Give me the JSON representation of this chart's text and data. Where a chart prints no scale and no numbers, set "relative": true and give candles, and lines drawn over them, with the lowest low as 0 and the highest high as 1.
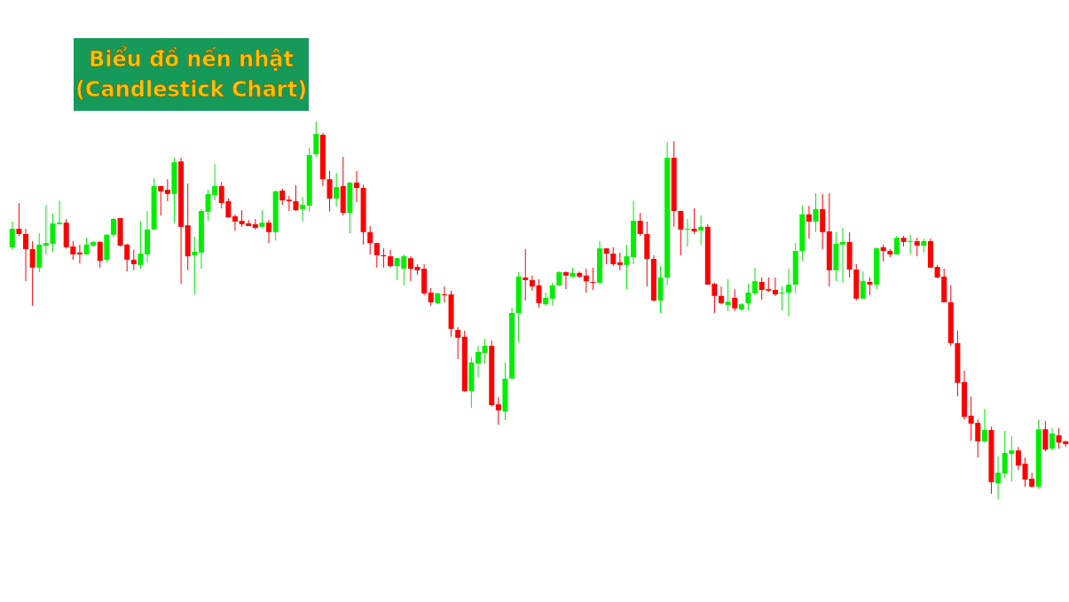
{
  "chart_data": {
    "type": "candlestick",
    "title": "Biểu đồ nến nhật\n(Candlestick Chart)",
    "relative": true,
    "categories": [
      null,
      null,
      null,
      null,
      null,
      null,
      null,
      null,
      null,
      null,
      null,
      null,
      null,
      null,
      null,
      null,
      null,
      null,
      null,
      null,
      null,
      null,
      null,
      null,
      null,
      null,
      null,
      null,
      null,
      null,
      null,
      null,
      null,
      null,
      null,
      null,
      null,
      null,
      null,
      null,
      null,
      null,
      null,
      null,
      null,
      null,
      null,
      null,
      null,
      null,
      null,
      null,
      null,
      null,
      null,
      null,
      null,
      null,
      null,
      null,
      null,
      null,
      null,
      null,
      null,
      null,
      null,
      null,
      null,
      null,
      null,
      null,
      null,
      null,
      null,
      null,
      null,
      null,
      null,
      null,
      null,
      null,
      null,
      null,
      null,
      null,
      null,
      null,
      null,
      null,
      null,
      null,
      null,
      null,
      null,
      null,
      null,
      null,
      null,
      null,
      null,
      null,
      null,
      null,
      null,
      null,
      null,
      null,
      null,
      null,
      null,
      null,
      null,
      null,
      null,
      null,
      null,
      null,
      null,
      null,
      null,
      null,
      null,
      null,
      null,
      null,
      null,
      null,
      null,
      null,
      null,
      null,
      null,
      null,
      null,
      null,
      null,
      null,
      null,
      null,
      null,
      null,
      null,
      null,
      null,
      null,
      null,
      null,
      null,
      null,
      null,
      null,
      null,
      null,
      null,
      null,
      null
    ],
    "ohlc": [
      [
        0.667,
        0.735,
        0.66,
        0.716
      ],
      [
        0.716,
        0.784,
        0.697,
        0.702
      ],
      [
        0.702,
        0.716,
        0.577,
        0.662
      ],
      [
        0.662,
        0.683,
        0.512,
        0.613
      ],
      [
        0.613,
        0.704,
        0.601,
        0.674
      ],
      [
        0.671,
        0.779,
        0.648,
        0.678
      ],
      [
        0.676,
        0.756,
        0.655,
        0.73
      ],
      [
        0.728,
        0.791,
        0.728,
        0.732
      ],
      [
        0.732,
        0.742,
        0.664,
        0.667
      ],
      [
        0.669,
        0.683,
        0.634,
        0.648
      ],
      [
        0.653,
        0.674,
        0.624,
        0.648
      ],
      [
        0.648,
        0.692,
        0.648,
        0.674
      ],
      [
        0.671,
        0.683,
        0.667,
        0.681
      ],
      [
        0.681,
        0.683,
        0.613,
        0.631
      ],
      [
        0.634,
        0.702,
        0.627,
        0.7
      ],
      [
        0.7,
        0.744,
        0.695,
        0.742
      ],
      [
        0.744,
        0.744,
        0.669,
        0.671
      ],
      [
        0.674,
        0.676,
        0.603,
        0.634
      ],
      [
        0.634,
        0.66,
        0.606,
        0.622
      ],
      [
        0.62,
        0.735,
        0.61,
        0.65
      ],
      [
        0.648,
        0.763,
        0.627,
        0.714
      ],
      [
        0.714,
        0.85,
        0.714,
        0.829
      ],
      [
        0.829,
        0.829,
        0.751,
        0.815
      ],
      [
        0.819,
        0.847,
        0.789,
        0.808
      ],
      [
        0.808,
        0.904,
        0.732,
        0.892
      ],
      [
        0.894,
        0.904,
        0.57,
        0.721
      ],
      [
        0.725,
        0.836,
        0.606,
        0.643
      ],
      [
        0.646,
        0.695,
        0.542,
        0.655
      ],
      [
        0.653,
        0.768,
        0.61,
        0.763
      ],
      [
        0.761,
        0.819,
        0.737,
        0.808
      ],
      [
        0.805,
        0.887,
        0.791,
        0.829
      ],
      [
        0.829,
        0.84,
        0.77,
        0.784
      ],
      [
        0.789,
        0.796,
        0.746,
        0.746
      ],
      [
        0.749,
        0.754,
        0.711,
        0.735
      ],
      [
        0.737,
        0.765,
        0.721,
        0.728
      ],
      [
        0.73,
        0.739,
        0.723,
        0.723
      ],
      [
        0.728,
        0.742,
        0.714,
        0.718
      ],
      [
        0.721,
        0.765,
        0.718,
        0.732
      ],
      [
        0.732,
        0.739,
        0.678,
        0.707
      ],
      [
        0.707,
        0.817,
        0.685,
        0.815
      ],
      [
        0.817,
        0.822,
        0.779,
        0.791
      ],
      [
        0.793,
        0.803,
        0.763,
        0.789
      ],
      [
        0.789,
        0.831,
        0.763,
        0.765
      ],
      [
        0.768,
        0.8,
        0.735,
        0.779
      ],
      [
        0.777,
        0.93,
        0.761,
        0.911
      ],
      [
        0.913,
        1,
        0.906,
        0.967
      ],
      [
        0.965,
        0.969,
        0.829,
        0.847
      ],
      [
        0.847,
        0.869,
        0.761,
        0.796
      ],
      [
        0.796,
        0.864,
        0.775,
        0.826
      ],
      [
        0.829,
        0.906,
        0.751,
        0.758
      ],
      [
        0.758,
        0.84,
        0.704,
        0.838
      ],
      [
        0.838,
        0.869,
        0.786,
        0.824
      ],
      [
        0.824,
        0.833,
        0.674,
        0.707
      ],
      [
        0.707,
        0.723,
        0.648,
        0.678
      ],
      [
        0.678,
        0.678,
        0.613,
        0.646
      ],
      [
        0.646,
        0.664,
        0.613,
        0.643
      ],
      [
        0.643,
        0.66,
        0.613,
        0.617
      ],
      [
        0.617,
        0.638,
        0.58,
        0.638
      ],
      [
        0.61,
        0.648,
        0.566,
        0.643
      ],
      [
        0.638,
        0.643,
        0.577,
        0.61
      ],
      [
        0.615,
        0.622,
        0.594,
        0.606
      ],
      [
        0.61,
        0.622,
        0.54,
        0.545
      ],
      [
        0.547,
        0.559,
        0.512,
        0.521
      ],
      [
        0.519,
        0.547,
        0.516,
        0.545
      ],
      [
        0.542,
        0.563,
        0.521,
        0.54
      ],
      [
        0.542,
        0.552,
        0.43,
        0.451
      ],
      [
        0.448,
        0.455,
        0.371,
        0.427
      ],
      [
        0.43,
        0.446,
        0.284,
        0.286
      ],
      [
        0.286,
        0.376,
        0.242,
        0.362
      ],
      [
        0.359,
        0.406,
        0.322,
        0.39
      ],
      [
        0.387,
        0.425,
        0.359,
        0.406
      ],
      [
        0.406,
        0.42,
        0.246,
        0.249
      ],
      [
        0.251,
        0.27,
        0.197,
        0.235
      ],
      [
        0.232,
        0.362,
        0.209,
        0.319
      ],
      [
        0.319,
        0.507,
        0.319,
        0.493
      ],
      [
        0.493,
        0.601,
        0.415,
        0.589
      ],
      [
        0.587,
        0.662,
        0.526,
        0.58
      ],
      [
        0.58,
        0.592,
        0.552,
        0.563
      ],
      [
        0.566,
        0.582,
        0.507,
        0.519
      ],
      [
        0.516,
        0.547,
        0.512,
        0.533
      ],
      [
        0.531,
        0.573,
        0.514,
        0.566
      ],
      [
        0.566,
        0.603,
        0.563,
        0.601
      ],
      [
        0.601,
        0.603,
        0.556,
        0.592
      ],
      [
        0.589,
        0.613,
        0.587,
        0.599
      ],
      [
        0.599,
        0.603,
        0.585,
        0.589
      ],
      [
        0.592,
        0.61,
        0.547,
        0.577
      ],
      [
        0.575,
        0.613,
        0.554,
        0.573
      ],
      [
        0.573,
        0.683,
        0.57,
        0.664
      ],
      [
        0.664,
        0.664,
        0.622,
        0.65
      ],
      [
        0.65,
        0.667,
        0.617,
        0.622
      ],
      [
        0.627,
        0.653,
        0.606,
        0.62
      ],
      [
        0.62,
        0.674,
        0.556,
        0.643
      ],
      [
        0.641,
        0.791,
        0.622,
        0.737
      ],
      [
        0.737,
        0.758,
        0.697,
        0.702
      ],
      [
        0.702,
        0.735,
        0.563,
        0.636
      ],
      [
        0.636,
        0.646,
        0.523,
        0.526
      ],
      [
        0.526,
        0.617,
        0.493,
        0.587
      ],
      [
        0.587,
        0.946,
        0.566,
        0.904
      ],
      [
        0.904,
        0.948,
        0.721,
        0.763
      ],
      [
        0.763,
        0.763,
        0.646,
        0.714
      ],
      [
        0.714,
        0.742,
        0.669,
        0.716
      ],
      [
        0.716,
        0.77,
        0.702,
        0.709
      ],
      [
        0.711,
        0.751,
        0.674,
        0.721
      ],
      [
        0.721,
        0.728,
        0.568,
        0.568
      ],
      [
        0.57,
        0.573,
        0.493,
        0.538
      ],
      [
        0.538,
        0.563,
        0.516,
        0.519
      ],
      [
        0.514,
        0.582,
        0.498,
        0.523
      ],
      [
        0.533,
        0.556,
        0.498,
        0.505
      ],
      [
        0.502,
        0.519,
        0.498,
        0.516
      ],
      [
        0.519,
        0.57,
        0.5,
        0.547
      ],
      [
        0.545,
        0.613,
        0.54,
        0.577
      ],
      [
        0.575,
        0.587,
        0.528,
        0.554
      ],
      [
        0.556,
        0.587,
        0.549,
        0.552
      ],
      [
        0.554,
        0.587,
        0.538,
        0.542
      ],
      [
        0.545,
        0.563,
        0.5,
        0.547
      ],
      [
        0.547,
        0.61,
        0.484,
        0.568
      ],
      [
        0.568,
        0.678,
        0.545,
        0.657
      ],
      [
        0.657,
        0.777,
        0.631,
        0.754
      ],
      [
        0.754,
        0.777,
        0.69,
        0.735
      ],
      [
        0.735,
        0.81,
        0.707,
        0.768
      ],
      [
        0.768,
        0.808,
        0.662,
        0.707
      ],
      [
        0.709,
        0.81,
        0.563,
        0.606
      ],
      [
        0.606,
        0.707,
        0.577,
        0.676
      ],
      [
        0.674,
        0.718,
        0.573,
        0.681
      ],
      [
        0.681,
        0.707,
        0.587,
        0.608
      ],
      [
        0.608,
        0.622,
        0.526,
        0.531
      ],
      [
        0.531,
        0.603,
        0.531,
        0.577
      ],
      [
        0.575,
        0.587,
        0.54,
        0.568
      ],
      [
        0.568,
        0.667,
        0.556,
        0.664
      ],
      [
        0.667,
        0.674,
        0.629,
        0.657
      ],
      [
        0.657,
        0.662,
        0.641,
        0.648
      ],
      [
        0.648,
        0.697,
        0.648,
        0.692
      ],
      [
        0.692,
        0.697,
        0.669,
        0.681
      ],
      [
        0.681,
        0.7,
        0.648,
        0.683
      ],
      [
        0.683,
        0.692,
        0.643,
        0.671
      ],
      [
        0.671,
        0.69,
        0.653,
        0.683
      ],
      [
        0.683,
        0.69,
        0.613,
        0.613
      ],
      [
        0.615,
        0.62,
        0.585,
        0.587
      ],
      [
        0.589,
        0.61,
        0.521,
        0.521
      ],
      [
        0.521,
        0.566,
        0.406,
        0.413
      ],
      [
        0.413,
        0.446,
        0.272,
        0.308
      ],
      [
        0.31,
        0.34,
        0.211,
        0.218
      ],
      [
        0.221,
        0.272,
        0.155,
        0.2
      ],
      [
        0.202,
        0.211,
        0.11,
        0.153
      ],
      [
        0.153,
        0.239,
        0.15,
        0.183
      ],
      [
        0.183,
        0.192,
        0.014,
        0.045
      ],
      [
        0.042,
        0.113,
        0,
        0.07
      ],
      [
        0.068,
        0.181,
        0.056,
        0.122
      ],
      [
        0.12,
        0.167,
        0.047,
        0.129
      ],
      [
        0.129,
        0.138,
        0.077,
        0.089
      ],
      [
        0.094,
        0.11,
        0.033,
        0.052
      ],
      [
        0.054,
        0.07,
        0.031,
        0.033
      ],
      [
        0.033,
        0.211,
        0.028,
        0.185
      ],
      [
        0.185,
        0.207,
        0.127,
        0.131
      ],
      [
        0.134,
        0.188,
        0.129,
        0.174
      ],
      [
        0.169,
        0.188,
        0.134,
        0.15
      ],
      [
        0.153,
        0.155,
        0.139,
        0.146
      ]
    ],
    "colors": [
      "#00ee00",
      "#ff0000",
      "#ff0000",
      "#ff0000",
      "#00ee00",
      "#00ee00",
      "#00ee00",
      "#00ee00",
      "#ff0000",
      "#ff0000",
      "#ff0000",
      "#00ee00",
      "#00ee00",
      "#ff0000",
      "#00ee00",
      "#00ee00",
      "#ff0000",
      "#ff0000",
      "#ff0000",
      "#00ee00",
      "#00ee00",
      "#00ee00",
      "#ff0000",
      "#ff0000",
      "#00ee00",
      "#ff0000",
      "#ff0000",
      "#00ee00",
      "#00ee00",
      "#00ee00",
      "#00ee00",
      "#ff0000",
      "#ff0000",
      "#ff0000",
      "#ff0000",
      "#ff0000",
      "#ff0000",
      "#00ee00",
      "#ff0000",
      "#00ee00",
      "#ff0000",
      "#ff0000",
      "#ff0000",
      "#00ee00",
      "#00ee00",
      "#00ee00",
      "#ff0000",
      "#ff0000",
      "#00ee00",
      "#ff0000",
      "#00ee00",
      "#ff0000",
      "#ff0000",
      "#ff0000",
      "#ff0000",
      "#ff0000",
      "#ff0000",
      "#00ee00",
      "#00ee00",
      "#ff0000",
      "#ff0000",
      "#ff0000",
      "#ff0000",
      "#00ee00",
      "#ff0000",
      "#ff0000",
      "#ff0000",
      "#ff0000",
      "#00ee00",
      "#00ee00",
      "#00ee00",
      "#ff0000",
      "#ff0000",
      "#00ee00",
      "#00ee00",
      "#00ee00",
      "#ff0000",
      "#ff0000",
      "#ff0000",
      "#00ee00",
      "#00ee00",
      "#00ee00",
      "#ff0000",
      "#00ee00",
      "#ff0000",
      "#ff0000",
      "#ff0000",
      "#00ee00",
      "#ff0000",
      "#ff0000",
      "#ff0000",
      "#00ee00",
      "#00ee00",
      "#ff0000",
      "#ff0000",
      "#ff0000",
      "#00ee00",
      "#00ee00",
      "#ff0000",
      "#ff0000",
      "#00ee00",
      "#ff0000",
      "#00ee00",
      "#ff0000",
      "#ff0000",
      "#ff0000",
      "#00ee00",
      "#ff0000",
      "#00ee00",
      "#00ee00",
      "#00ee00",
      "#ff0000",
      "#ff0000",
      "#ff0000",
      "#00ee00",
      "#00ee00",
      "#00ee00",
      "#00ee00",
      "#ff0000",
      "#00ee00",
      "#ff0000",
      "#ff0000",
      "#00ee00",
      "#00ee00",
      "#ff0000",
      "#ff0000",
      "#00ee00",
      "#ff0000",
      "#00ee00",
      "#ff0000",
      "#ff0000",
      "#00ee00",
      "#ff0000",
      "#00ee00",
      "#ff0000",
      "#00ee00",
      "#ff0000",
      "#ff0000",
      "#ff0000",
      "#ff0000",
      "#ff0000",
      "#ff0000",
      "#ff0000",
      "#ff0000",
      "#00ee00",
      "#ff0000",
      "#00ee00",
      "#00ee00",
      "#00ee00",
      "#ff0000",
      "#ff0000",
      "#ff0000",
      "#00ee00",
      "#ff0000",
      "#00ee00",
      "#ff0000",
      "#ff0000"
    ]
  }
}
